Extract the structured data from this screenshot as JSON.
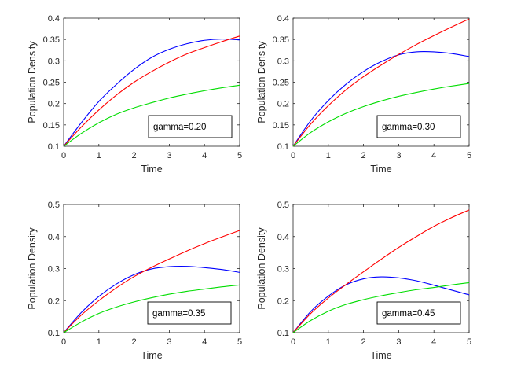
{
  "chart_data": [
    {
      "type": "line",
      "xlabel": "Time",
      "ylabel": "Population Density",
      "xlim": [
        0,
        5
      ],
      "ylim": [
        0.1,
        0.4
      ],
      "xticks": [
        "0",
        "1",
        "2",
        "3",
        "4",
        "5"
      ],
      "yticks": [
        "0.1",
        "0.15",
        "0.2",
        "0.25",
        "0.3",
        "0.35",
        "0.4"
      ],
      "annotation": "gamma=0.20",
      "x": [
        0,
        0.5,
        1,
        1.5,
        2,
        2.5,
        3,
        3.5,
        4,
        4.5,
        5
      ],
      "series": [
        {
          "name": "blue",
          "color": "#0000ff",
          "values": [
            0.1,
            0.155,
            0.205,
            0.245,
            0.28,
            0.308,
            0.327,
            0.34,
            0.348,
            0.351,
            0.349
          ]
        },
        {
          "name": "red",
          "color": "#ff0000",
          "values": [
            0.1,
            0.145,
            0.185,
            0.22,
            0.25,
            0.275,
            0.297,
            0.316,
            0.331,
            0.345,
            0.358
          ]
        },
        {
          "name": "green",
          "color": "#00dd00",
          "values": [
            0.1,
            0.13,
            0.155,
            0.175,
            0.19,
            0.202,
            0.213,
            0.222,
            0.23,
            0.237,
            0.243
          ]
        }
      ]
    },
    {
      "type": "line",
      "xlabel": "Time",
      "ylabel": "Population Density",
      "xlim": [
        0,
        5
      ],
      "ylim": [
        0.1,
        0.4
      ],
      "xticks": [
        "0",
        "1",
        "2",
        "3",
        "4",
        "5"
      ],
      "yticks": [
        "0.1",
        "0.15",
        "0.2",
        "0.25",
        "0.3",
        "0.35",
        "0.4"
      ],
      "annotation": "gamma=0.30",
      "x": [
        0,
        0.5,
        1,
        1.5,
        2,
        2.5,
        3,
        3.5,
        4,
        4.5,
        5
      ],
      "series": [
        {
          "name": "blue",
          "color": "#0000ff",
          "values": [
            0.1,
            0.16,
            0.207,
            0.245,
            0.275,
            0.298,
            0.314,
            0.321,
            0.321,
            0.317,
            0.31
          ]
        },
        {
          "name": "red",
          "color": "#ff0000",
          "values": [
            0.1,
            0.152,
            0.195,
            0.232,
            0.263,
            0.29,
            0.315,
            0.338,
            0.359,
            0.379,
            0.398
          ]
        },
        {
          "name": "green",
          "color": "#00dd00",
          "values": [
            0.1,
            0.132,
            0.157,
            0.177,
            0.193,
            0.206,
            0.217,
            0.226,
            0.234,
            0.241,
            0.247
          ]
        }
      ]
    },
    {
      "type": "line",
      "xlabel": "Time",
      "ylabel": "Population Density",
      "xlim": [
        0,
        5
      ],
      "ylim": [
        0.1,
        0.5
      ],
      "xticks": [
        "0",
        "1",
        "2",
        "3",
        "4",
        "5"
      ],
      "yticks": [
        "0.1",
        "0.2",
        "0.3",
        "0.4",
        "0.5"
      ],
      "annotation": "gamma=0.35",
      "x": [
        0,
        0.5,
        1,
        1.5,
        2,
        2.5,
        3,
        3.5,
        4,
        4.5,
        5
      ],
      "series": [
        {
          "name": "blue",
          "color": "#0000ff",
          "values": [
            0.1,
            0.163,
            0.213,
            0.252,
            0.281,
            0.299,
            0.306,
            0.307,
            0.303,
            0.297,
            0.288
          ]
        },
        {
          "name": "red",
          "color": "#ff0000",
          "values": [
            0.1,
            0.155,
            0.2,
            0.24,
            0.275,
            0.304,
            0.33,
            0.355,
            0.378,
            0.399,
            0.419
          ]
        },
        {
          "name": "green",
          "color": "#00dd00",
          "values": [
            0.1,
            0.133,
            0.16,
            0.18,
            0.196,
            0.209,
            0.22,
            0.229,
            0.236,
            0.243,
            0.249
          ]
        }
      ]
    },
    {
      "type": "line",
      "xlabel": "Time",
      "ylabel": "Population Density",
      "xlim": [
        0,
        5
      ],
      "ylim": [
        0.1,
        0.5
      ],
      "xticks": [
        "0",
        "1",
        "2",
        "3",
        "4",
        "5"
      ],
      "yticks": [
        "0.1",
        "0.2",
        "0.3",
        "0.4",
        "0.5"
      ],
      "annotation": "gamma=0.45",
      "x": [
        0,
        0.5,
        1,
        1.5,
        2,
        2.5,
        3,
        3.5,
        4,
        4.5,
        5
      ],
      "series": [
        {
          "name": "blue",
          "color": "#0000ff",
          "values": [
            0.1,
            0.166,
            0.214,
            0.249,
            0.268,
            0.274,
            0.271,
            0.262,
            0.248,
            0.233,
            0.218
          ]
        },
        {
          "name": "red",
          "color": "#ff0000",
          "values": [
            0.1,
            0.16,
            0.208,
            0.25,
            0.29,
            0.329,
            0.366,
            0.4,
            0.432,
            0.459,
            0.483
          ]
        },
        {
          "name": "green",
          "color": "#00dd00",
          "values": [
            0.1,
            0.138,
            0.167,
            0.188,
            0.203,
            0.215,
            0.225,
            0.234,
            0.241,
            0.249,
            0.256
          ]
        }
      ]
    }
  ]
}
